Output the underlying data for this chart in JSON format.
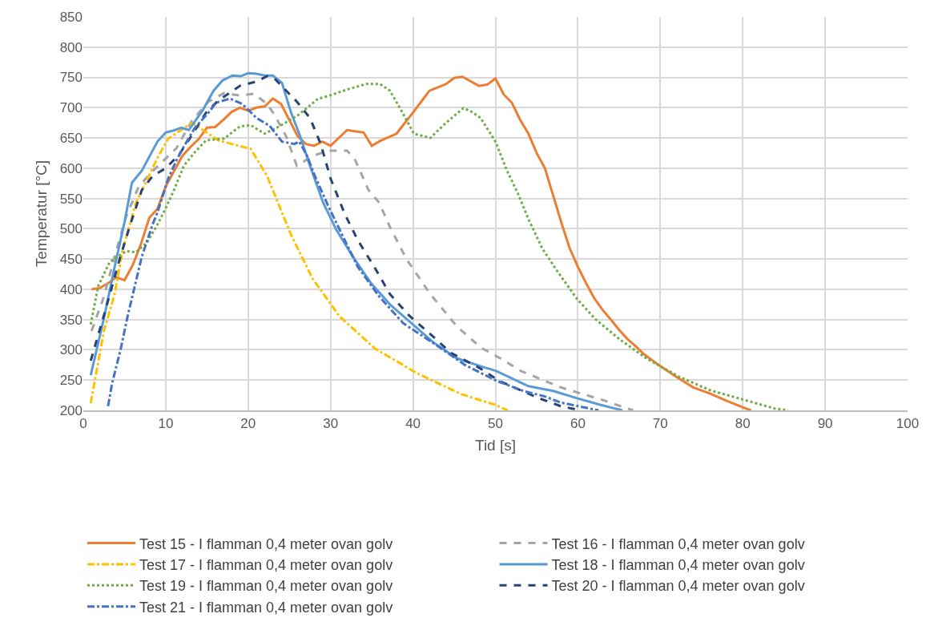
{
  "chart_data": {
    "type": "line",
    "xlabel": "Tid [s]",
    "ylabel": "Temperatur [°C]",
    "xlim": [
      0,
      100
    ],
    "xticks": [
      0,
      10,
      20,
      30,
      40,
      50,
      60,
      70,
      80,
      90,
      100
    ],
    "ylim": [
      200,
      850
    ],
    "yticks": [
      200,
      250,
      300,
      350,
      400,
      450,
      500,
      550,
      600,
      650,
      700,
      750,
      800,
      850
    ],
    "grid": true,
    "legend": "bottom",
    "marker": "none",
    "series": [
      {
        "name": "Test 15 - I flamman 0,4 meter ovan golv",
        "color": "#ed7d31",
        "line_style": "solid",
        "x": [
          1,
          2,
          3,
          4,
          5,
          6,
          7,
          8,
          9,
          10,
          11,
          12,
          13,
          14,
          15,
          16,
          17,
          18,
          19,
          20,
          21,
          22,
          23,
          24,
          26,
          27,
          28,
          29,
          30,
          32,
          34,
          35,
          36,
          38,
          40,
          41,
          42,
          44,
          45,
          46,
          48,
          49,
          50,
          51,
          52,
          53,
          54,
          55,
          56,
          57,
          58,
          59,
          60,
          61,
          62,
          63,
          64,
          65,
          66,
          67,
          68,
          70,
          72,
          74,
          76,
          78,
          80,
          81
        ],
        "values": [
          400,
          402,
          410,
          420,
          415,
          440,
          475,
          518,
          533,
          570,
          595,
          620,
          635,
          648,
          667,
          668,
          680,
          693,
          700,
          695,
          700,
          702,
          715,
          706,
          653,
          640,
          637,
          644,
          637,
          663,
          659,
          637,
          645,
          657,
          692,
          710,
          728,
          739,
          749,
          751,
          736,
          738,
          748,
          722,
          708,
          680,
          657,
          625,
          600,
          555,
          510,
          468,
          437,
          410,
          385,
          366,
          350,
          333,
          318,
          306,
          293,
          273,
          255,
          238,
          228,
          216,
          205,
          200
        ]
      },
      {
        "name": "Test 16 - I flamman 0,4 meter ovan golv",
        "color": "#a5a5a5",
        "line_style": "dashed",
        "x": [
          1,
          2.5,
          3.8,
          5.2,
          6.7,
          8.1,
          9.3,
          11.3,
          13.2,
          15.2,
          17.1,
          19,
          20.7,
          22.3,
          23.2,
          24.6,
          25.9,
          27.8,
          29.7,
          32,
          33,
          34.6,
          35.9,
          37.2,
          39.2,
          42.1,
          45.3,
          48.2,
          51.1,
          53.1,
          57.9,
          62.8,
          66.7
        ],
        "values": [
          331,
          388,
          454,
          520,
          569,
          591,
          607,
          633,
          679,
          710,
          724,
          720,
          723,
          706,
          688,
          653,
          604,
          620,
          629,
          629,
          613,
          564,
          543,
          503,
          450,
          392,
          339,
          304,
          282,
          265,
          238,
          218,
          200
        ]
      },
      {
        "name": "Test 17 - I flamman 0,4 meter ovan golv",
        "color": "#ffc000",
        "line_style": "dashdot",
        "x": [
          0.9,
          2.5,
          3.8,
          4.8,
          6.4,
          9,
          10.3,
          13.2,
          16.4,
          18,
          20.3,
          22.3,
          25.2,
          27.8,
          31.1,
          35.4,
          40.4,
          45.8,
          50,
          51.5
        ],
        "values": [
          212,
          331,
          392,
          467,
          543,
          617,
          649,
          675,
          646,
          640,
          632,
          587,
          490,
          418,
          355,
          302,
          262,
          227,
          209,
          200
        ]
      },
      {
        "name": "Test 18 - I flamman 0,4 meter ovan golv",
        "color": "#5b9bd5",
        "line_style": "solid",
        "x": [
          0.9,
          2.5,
          3.8,
          5,
          5.9,
          7.1,
          9,
          10,
          10.9,
          11.9,
          12.8,
          14.5,
          15.8,
          16.9,
          18.1,
          19.1,
          20,
          21,
          22,
          23,
          24.1,
          25.2,
          26.3,
          27.5,
          29.1,
          30.7,
          32.7,
          34.9,
          37.2,
          39.8,
          42.4,
          45.3,
          48.2,
          50.1,
          54,
          57,
          59.9,
          62.8,
          65.4
        ],
        "values": [
          258,
          352,
          437,
          511,
          576,
          596,
          644,
          659,
          662,
          667,
          663,
          696,
          728,
          745,
          753,
          752,
          757,
          756,
          753,
          753,
          741,
          692,
          653,
          604,
          543,
          498,
          454,
          410,
          375,
          344,
          313,
          286,
          273,
          265,
          240,
          232,
          220,
          209,
          200
        ]
      },
      {
        "name": "Test 19 - I flamman 0,4 meter ovan golv",
        "color": "#70ad47",
        "line_style": "dotted",
        "x": [
          0.9,
          1.8,
          3.2,
          5.2,
          6.4,
          7.7,
          9,
          10,
          11,
          12.2,
          13.5,
          14.9,
          17.1,
          19,
          20.3,
          22,
          23.9,
          26.1,
          28.5,
          29.7,
          32,
          34.3,
          36,
          37.2,
          38.8,
          40.1,
          42.1,
          44,
          46.1,
          46.9,
          48.2,
          50,
          51.4,
          52.8,
          54,
          55.7,
          57.6,
          59.9,
          62.1,
          65,
          68.3,
          72.2,
          76.1,
          80,
          83.9,
          85.5
        ],
        "values": [
          342,
          405,
          445,
          463,
          461,
          477,
          507,
          534,
          564,
          604,
          626,
          646,
          649,
          669,
          671,
          657,
          670,
          688,
          715,
          719,
          730,
          739,
          739,
          728,
          690,
          657,
          650,
          675,
          699,
          695,
          683,
          644,
          596,
          556,
          516,
          467,
          428,
          384,
          351,
          318,
          286,
          256,
          233,
          218,
          203,
          200
        ]
      },
      {
        "name": "Test 20 - I flamman 0,4 meter ovan golv",
        "color": "#264478",
        "line_style": "dashed",
        "x": [
          0.9,
          2.5,
          4.5,
          5.7,
          7.1,
          8.4,
          10,
          11.6,
          13.2,
          14.9,
          16.4,
          19,
          21,
          22.3,
          23.2,
          25.9,
          27.5,
          28.8,
          30,
          31.7,
          33.3,
          35.3,
          37.2,
          39.5,
          42.1,
          44.6,
          48.2,
          50.4,
          53.1,
          55.3,
          57.9,
          60.3
        ],
        "values": [
          282,
          357,
          454,
          507,
          564,
          587,
          600,
          622,
          655,
          692,
          712,
          736,
          743,
          752,
          748,
          710,
          683,
          640,
          583,
          525,
          481,
          437,
          392,
          357,
          326,
          295,
          269,
          249,
          233,
          220,
          207,
          200
        ]
      },
      {
        "name": "Test 21 - I flamman 0,4 meter ovan golv",
        "color": "#4472c4",
        "line_style": "dashdot",
        "x": [
          3,
          3.5,
          4.5,
          5.4,
          6.4,
          7.1,
          8.4,
          9,
          10.3,
          11.3,
          12.2,
          13.5,
          15.2,
          16.1,
          17.8,
          19.3,
          21,
          22.6,
          24.1,
          25.6,
          26.2,
          27.1,
          28.1,
          29.7,
          31.4,
          33.3,
          35.9,
          38.8,
          42.7,
          46.3,
          50.1,
          53.4,
          56,
          57.9,
          62.5
        ],
        "values": [
          207,
          245,
          299,
          357,
          414,
          454,
          507,
          527,
          583,
          613,
          636,
          666,
          692,
          708,
          715,
          706,
          683,
          670,
          644,
          640,
          644,
          622,
          587,
          538,
          490,
          437,
          388,
          344,
          309,
          275,
          249,
          232,
          223,
          213,
          200
        ]
      }
    ]
  }
}
